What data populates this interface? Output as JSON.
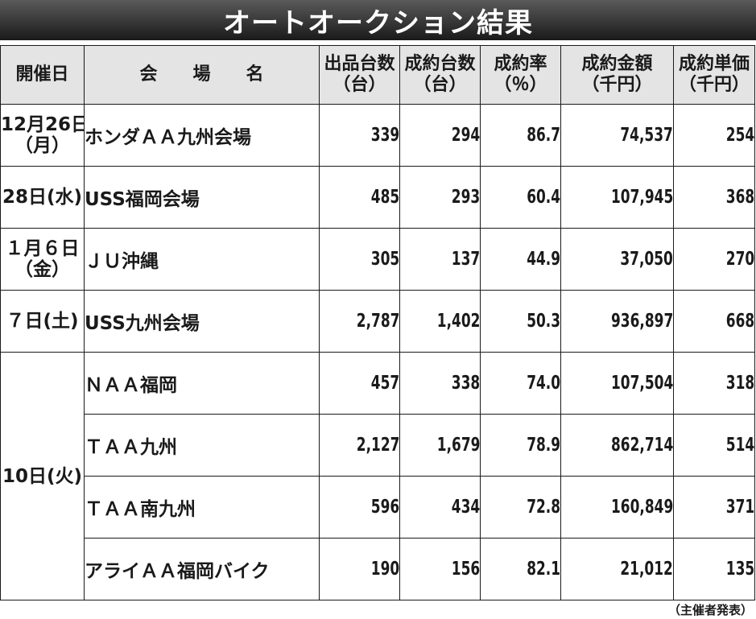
{
  "banner": {
    "title": "オートオークション結果"
  },
  "table": {
    "headers": {
      "date": "開催日",
      "venue": "会　　場　　名",
      "listed": [
        "出品台数",
        "（台）"
      ],
      "sold": [
        "成約台数",
        "（台）"
      ],
      "rate": [
        "成約率",
        "（％）"
      ],
      "amount": [
        "成約金額",
        "（千円）"
      ],
      "unit": [
        "成約単価",
        "（千円）"
      ]
    },
    "rows": [
      {
        "date": [
          "12月26日",
          "（月）"
        ],
        "venue": "ホンダＡＡ九州会場",
        "listed": "339",
        "sold": "294",
        "rate": "86.7",
        "amount": "74,537",
        "unit": "254"
      },
      {
        "date": [
          "28日(水)"
        ],
        "venue": "USS福岡会場",
        "listed": "485",
        "sold": "293",
        "rate": "60.4",
        "amount": "107,945",
        "unit": "368"
      },
      {
        "date": [
          "１月６日",
          "（金）"
        ],
        "venue": "ＪＵ沖縄",
        "listed": "305",
        "sold": "137",
        "rate": "44.9",
        "amount": "37,050",
        "unit": "270"
      },
      {
        "date": [
          "７日(土)"
        ],
        "venue": "USS九州会場",
        "listed": "2,787",
        "sold": "1,402",
        "rate": "50.3",
        "amount": "936,897",
        "unit": "668"
      },
      {
        "date": [
          "10日(火)"
        ],
        "venue": "ＮＡＡ福岡",
        "listed": "457",
        "sold": "338",
        "rate": "74.0",
        "amount": "107,504",
        "unit": "318"
      },
      {
        "venue": "ＴＡＡ九州",
        "listed": "2,127",
        "sold": "1,679",
        "rate": "78.9",
        "amount": "862,714",
        "unit": "514"
      },
      {
        "venue": "ＴＡＡ南九州",
        "listed": "596",
        "sold": "434",
        "rate": "72.8",
        "amount": "160,849",
        "unit": "371"
      },
      {
        "venue": "アライＡＡ福岡バイク",
        "listed": "190",
        "sold": "156",
        "rate": "82.1",
        "amount": "21,012",
        "unit": "135"
      }
    ]
  },
  "footer": {
    "credit": "（主催者発表）"
  }
}
